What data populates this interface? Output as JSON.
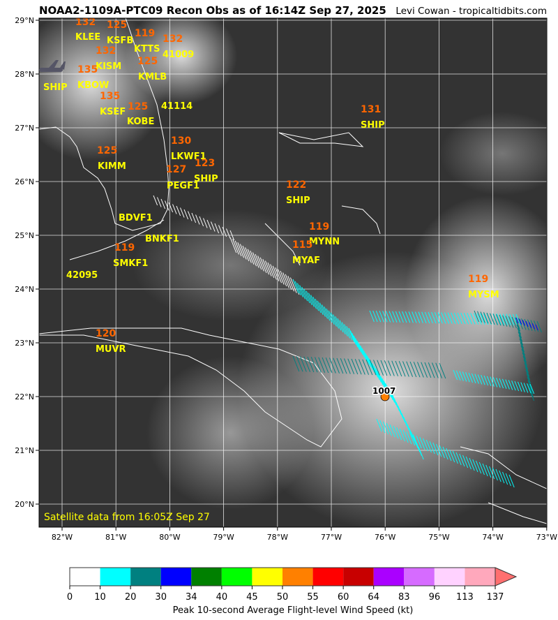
{
  "title": "NOAA2-1109A-PTC09 Recon Obs as of 16:14Z Sep 27, 2025",
  "credit": "Levi Cowan - tropicaltidbits.com",
  "satellite_note": "Satellite data from 16:05Z Sep 27",
  "lon_ticks": [
    "82°W",
    "81°W",
    "80°W",
    "79°W",
    "78°W",
    "77°W",
    "76°W",
    "75°W",
    "74°W",
    "73°W"
  ],
  "lat_ticks": [
    "29°N",
    "28°N",
    "27°N",
    "26°N",
    "25°N",
    "24°N",
    "23°N",
    "22°N",
    "21°N",
    "20°N"
  ],
  "stations": [
    "KLEE",
    "KSFB",
    "KTTS",
    "41009",
    "KISM",
    "KMLB",
    "SHIP",
    "KBOW",
    "41114",
    "KSEF",
    "KOBE",
    "KIMM",
    "LKWF1",
    "SHIP",
    "PEGF1",
    "SHIP",
    "BDVF1",
    "BNKF1",
    "SMKF1",
    "42095",
    "MYNN",
    "MYAF",
    "SHIP",
    "MYSM",
    "MUVR"
  ],
  "values": [
    "132",
    "125",
    "119",
    "132",
    "132",
    "125",
    "135",
    "135",
    "125",
    "130",
    "125",
    "127",
    "123",
    "122",
    "119",
    "115",
    "119",
    "131",
    "119",
    "120"
  ],
  "storm": {
    "pressure": "1007",
    "color": "#ff8000"
  },
  "colorbar": {
    "label": "Peak 10-second Average Flight-level Wind Speed (kt)",
    "ticks": [
      "0",
      "10",
      "20",
      "30",
      "34",
      "40",
      "45",
      "50",
      "55",
      "60",
      "64",
      "83",
      "96",
      "113",
      "137"
    ],
    "colors": [
      "#ffffff",
      "#00ffff",
      "#008080",
      "#0000ff",
      "#008000",
      "#00ff00",
      "#ffff00",
      "#ff8000",
      "#ff0000",
      "#c80000",
      "#aa00ff",
      "#d66bff",
      "#ffd2ff",
      "#ffa8bc"
    ],
    "extend_color": "#ff6f6f"
  }
}
